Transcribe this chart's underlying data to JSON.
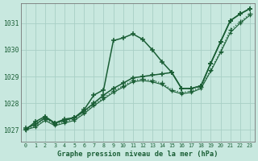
{
  "title": "Graphe pression niveau de la mer (hPa)",
  "bg_color": "#c8e8df",
  "grid_color": "#a8cfc5",
  "line_color": "#1a5e35",
  "ylim": [
    1026.55,
    1031.75
  ],
  "xlim": [
    -0.5,
    23.5
  ],
  "series": [
    {
      "data": [
        1027.0,
        1027.3,
        1027.5,
        1027.25,
        1027.4,
        1027.45,
        1027.75,
        1028.3,
        1028.5,
        1030.35,
        1030.45,
        1030.6,
        1030.4,
        1030.0,
        1029.55,
        1029.15,
        1028.55,
        1028.55,
        1028.65,
        1029.5,
        1030.3,
        1031.1,
        1031.35,
        1031.55
      ],
      "lw": 1.1,
      "marker": "+",
      "ms": 5,
      "mew": 1.1,
      "ls": "-"
    },
    {
      "data": [
        1027.05,
        1027.2,
        1027.45,
        1027.25,
        1027.35,
        1027.45,
        1027.7,
        1028.0,
        1028.3,
        1028.55,
        1028.75,
        1028.95,
        1029.0,
        1029.05,
        1029.1,
        1029.15,
        1028.55,
        1028.55,
        1028.65,
        1029.5,
        1030.3,
        1031.1,
        1031.35,
        1031.55
      ],
      "lw": 1.1,
      "marker": "+",
      "ms": 5,
      "mew": 1.1,
      "ls": "-"
    },
    {
      "data": [
        1027.0,
        1027.15,
        1027.4,
        1027.2,
        1027.3,
        1027.4,
        1027.65,
        1027.95,
        1028.2,
        1028.45,
        1028.65,
        1028.85,
        1028.9,
        1028.85,
        1028.75,
        1028.5,
        1028.4,
        1028.45,
        1028.6,
        1029.25,
        1029.95,
        1030.75,
        1031.05,
        1031.35
      ],
      "lw": 0.9,
      "marker": "+",
      "ms": 4,
      "mew": 0.9,
      "ls": ":"
    },
    {
      "data": [
        1027.0,
        1027.1,
        1027.35,
        1027.15,
        1027.25,
        1027.35,
        1027.6,
        1027.9,
        1028.15,
        1028.4,
        1028.6,
        1028.8,
        1028.85,
        1028.8,
        1028.7,
        1028.45,
        1028.35,
        1028.4,
        1028.55,
        1029.2,
        1029.9,
        1030.65,
        1031.0,
        1031.3
      ],
      "lw": 0.8,
      "marker": "+",
      "ms": 3.5,
      "mew": 0.8,
      "ls": "-"
    }
  ],
  "yticks": [
    1027,
    1028,
    1029,
    1030,
    1031
  ],
  "xticks": [
    0,
    1,
    2,
    3,
    4,
    5,
    6,
    7,
    8,
    9,
    10,
    11,
    12,
    13,
    14,
    15,
    16,
    17,
    18,
    19,
    20,
    21,
    22,
    23
  ]
}
